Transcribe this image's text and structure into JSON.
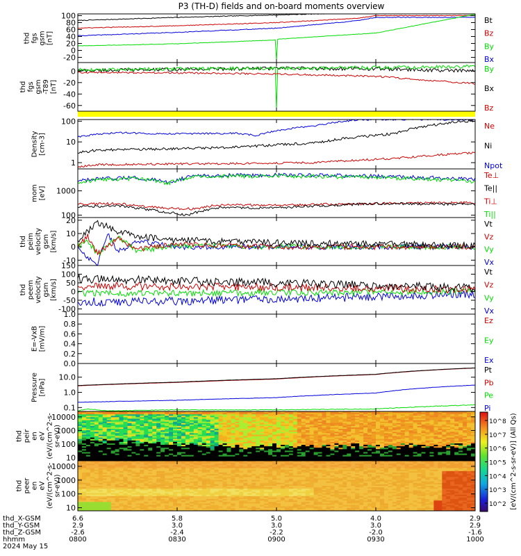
{
  "title": "P3 (TH-D) fields and on-board moments overview",
  "colors": {
    "black": "#000000",
    "red": "#cc0000",
    "green": "#00dd00",
    "blue": "#0000dd",
    "yellow": "#ffff00",
    "frame": "#000000"
  },
  "time_axis": {
    "ticks": [
      "0800",
      "0830",
      "0900",
      "0930",
      "1000"
    ],
    "date_label": "2024 May 15",
    "rows": [
      {
        "label": "thd_X-GSM",
        "values": [
          "6.6",
          "5.8",
          "5.0",
          "4.0",
          "2.9"
        ]
      },
      {
        "label": "thd_Y-GSM",
        "values": [
          "2.9",
          "3.0",
          "3.0",
          "3.0",
          "2.9"
        ]
      },
      {
        "label": "thd_Z-GSM",
        "values": [
          "-2.6",
          "-2.4",
          "-2.2",
          "-2.0",
          "-1.6"
        ]
      },
      {
        "label": "hhmm",
        "values": [
          "0800",
          "0830",
          "0900",
          "0930",
          "1000"
        ]
      }
    ]
  },
  "chart_data": [
    {
      "type": "line",
      "ylabel_lines": [
        "thd",
        "fgs",
        "gsm",
        "[nT]"
      ],
      "yscale": "linear",
      "ylim": [
        -35,
        105
      ],
      "yticks": [
        {
          "v": 100,
          "t": "100"
        },
        {
          "v": 80,
          "t": "80"
        },
        {
          "v": 60,
          "t": "60"
        },
        {
          "v": 40,
          "t": "40"
        },
        {
          "v": 20,
          "t": "20"
        },
        {
          "v": 0,
          "t": "0"
        },
        {
          "v": -20,
          "t": "-20"
        }
      ],
      "legend": [
        {
          "t": "Bt",
          "c": "black"
        },
        {
          "t": "Bz",
          "c": "red"
        },
        {
          "t": "By",
          "c": "green"
        },
        {
          "t": "Bx",
          "c": "blue"
        }
      ],
      "series": [
        {
          "color": "black",
          "x": [
            0,
            0.5,
            1.0,
            1.4,
            1.5
          ],
          "y": [
            86,
            95,
            102,
            108,
            110
          ],
          "noise": 1
        },
        {
          "color": "red",
          "x": [
            0,
            0.5,
            1.0,
            1.4,
            1.5
          ],
          "y": [
            64,
            71,
            80,
            92,
            100
          ],
          "noise": 1
        },
        {
          "color": "blue",
          "x": [
            0,
            0.5,
            1.0,
            1.4,
            1.5
          ],
          "y": [
            42,
            52,
            64,
            85,
            95
          ],
          "noise": 1
        },
        {
          "color": "green",
          "x": [
            0,
            0.5,
            0.999,
            1.0,
            1.001,
            1.5,
            2.0
          ],
          "y": [
            13,
            19,
            30,
            -28,
            32,
            50,
            104
          ],
          "noise": 0.6
        }
      ]
    },
    {
      "type": "line",
      "ylabel_lines": [
        "thd",
        "fgs",
        "gsm",
        "-T89",
        "[nT]"
      ],
      "yscale": "linear",
      "ylim": [
        -70,
        15
      ],
      "yticks": [
        {
          "v": 0,
          "t": "0"
        },
        {
          "v": -20,
          "t": "-20"
        },
        {
          "v": -40,
          "t": "-40"
        },
        {
          "v": -60,
          "t": "-60"
        }
      ],
      "legend": [
        {
          "t": "By",
          "c": "green"
        },
        {
          "t": "Bx",
          "c": "black"
        },
        {
          "t": "Bz",
          "c": "red"
        }
      ],
      "series": [
        {
          "color": "black",
          "x": [
            0,
            0.5,
            1.0,
            1.5,
            2.0
          ],
          "y": [
            1,
            3,
            5,
            4,
            0
          ],
          "noise": 3
        },
        {
          "color": "green",
          "x": [
            0,
            0.5,
            0.999,
            1.0,
            1.001,
            1.5,
            2.0
          ],
          "y": [
            2,
            4,
            5,
            -65,
            5,
            6,
            8
          ],
          "noise": 3
        },
        {
          "color": "red",
          "x": [
            0,
            0.5,
            1.0,
            1.5,
            2.0
          ],
          "y": [
            -2,
            -3,
            -5,
            -9,
            -22
          ],
          "noise": 1.5
        }
      ]
    },
    {
      "type": "line",
      "ylabel_lines": [
        "Density",
        "[cm-3]"
      ],
      "yscale": "log",
      "ylim": [
        0.5,
        120
      ],
      "yticks": [
        {
          "v": 100,
          "t": "100"
        },
        {
          "v": 10,
          "t": "10"
        },
        {
          "v": 1,
          "t": "1"
        }
      ],
      "legend": [
        {
          "t": "Ne",
          "c": "red"
        },
        {
          "t": "Ni",
          "c": "black"
        },
        {
          "t": "Npot",
          "c": "blue"
        }
      ],
      "series": [
        {
          "color": "blue",
          "x": [
            0,
            0.2,
            0.4,
            0.6,
            0.8,
            0.9,
            1.0,
            1.2,
            1.42
          ],
          "y": [
            18,
            28,
            25,
            25,
            26,
            20,
            35,
            60,
            120
          ],
          "noise": 0.04
        },
        {
          "color": "black",
          "x": [
            0,
            0.1,
            0.4,
            0.8,
            1.2,
            1.6,
            2.0
          ],
          "y": [
            3,
            4,
            4.5,
            5.5,
            9,
            25,
            110
          ],
          "noise": 0.06
        },
        {
          "color": "red",
          "x": [
            0,
            0.1,
            0.4,
            0.8,
            1.2,
            1.6,
            2.0
          ],
          "y": [
            0.6,
            0.8,
            0.85,
            0.9,
            1.0,
            1.6,
            3
          ],
          "noise": 0.05
        }
      ]
    },
    {
      "type": "line",
      "ylabel_lines": [
        "mom",
        "[eV]"
      ],
      "yscale": "log",
      "ylim": [
        80,
        8000
      ],
      "yticks": [
        {
          "v": 1000,
          "t": "1000"
        },
        {
          "v": 100,
          "t": "100"
        }
      ],
      "legend": [
        {
          "t": "Te⊥",
          "c": "red"
        },
        {
          "t": "Te||",
          "c": "black"
        },
        {
          "t": "Ti⊥",
          "c": "red"
        },
        {
          "t": "Ti||",
          "c": "green"
        }
      ],
      "series": [
        {
          "color": "blue",
          "x": [
            0,
            0.1,
            0.3,
            0.45,
            0.6,
            1.0,
            1.5,
            2.0
          ],
          "y": [
            2500,
            3000,
            3500,
            2200,
            4200,
            4500,
            4000,
            3000
          ],
          "noise": 0.08
        },
        {
          "color": "green",
          "x": [
            0,
            0.1,
            0.3,
            0.45,
            0.6,
            1.0,
            1.5,
            2.0
          ],
          "y": [
            2300,
            2800,
            3200,
            2000,
            3900,
            4100,
            3600,
            2400
          ],
          "noise": 0.08
        },
        {
          "color": "red",
          "x": [
            0,
            0.2,
            0.4,
            0.6,
            0.7,
            1.0,
            1.5,
            2.0
          ],
          "y": [
            280,
            300,
            200,
            180,
            260,
            260,
            300,
            330
          ],
          "noise": 0.05
        },
        {
          "color": "black",
          "x": [
            0,
            0.2,
            0.4,
            0.55,
            0.7,
            1.0,
            1.5,
            2.0
          ],
          "y": [
            220,
            240,
            150,
            100,
            200,
            200,
            300,
            280
          ],
          "noise": 0.05
        }
      ]
    },
    {
      "type": "line",
      "ylabel_lines": [
        "thd",
        "peim",
        "velocity",
        "gsm",
        "[km/s]"
      ],
      "yscale": "linear",
      "ylim": [
        -14,
        22
      ],
      "yticks": [
        {
          "v": 20,
          "t": "20"
        },
        {
          "v": 10,
          "t": "10"
        },
        {
          "v": 0,
          "t": "0"
        },
        {
          "v": -10,
          "t": "-10"
        }
      ],
      "legend": [
        {
          "t": "Vt",
          "c": "black"
        },
        {
          "t": "Vz",
          "c": "red"
        },
        {
          "t": "Vy",
          "c": "green"
        },
        {
          "t": "Vx",
          "c": "blue"
        }
      ],
      "series": [
        {
          "color": "blue",
          "x": [
            0,
            0.05,
            0.1,
            0.15,
            0.2,
            0.3,
            0.5,
            1.0,
            2.0
          ],
          "y": [
            0,
            -8,
            -12,
            10,
            -4,
            4,
            0,
            0,
            0
          ],
          "noise": 2
        },
        {
          "color": "green",
          "x": [
            0,
            0.05,
            0.1,
            0.2,
            0.3,
            0.5,
            1.0,
            2.0
          ],
          "y": [
            0,
            5,
            -6,
            8,
            -3,
            1,
            0,
            0
          ],
          "noise": 2
        },
        {
          "color": "red",
          "x": [
            0,
            0.05,
            0.1,
            0.2,
            0.3,
            0.5,
            1.0,
            2.0
          ],
          "y": [
            0,
            8,
            -5,
            6,
            -2,
            2,
            0,
            0
          ],
          "noise": 2
        },
        {
          "color": "black",
          "x": [
            0,
            0.05,
            0.1,
            0.2,
            0.3,
            0.5,
            1.0,
            2.0
          ],
          "y": [
            5,
            12,
            18,
            12,
            8,
            5,
            3,
            1
          ],
          "noise": 2.5
        }
      ]
    },
    {
      "type": "line",
      "ylabel_lines": [
        "thd",
        "peem",
        "velocity",
        "gsm",
        "[km/s]"
      ],
      "yscale": "linear",
      "ylim": [
        -130,
        150
      ],
      "yticks": [
        {
          "v": 150,
          "t": "150"
        },
        {
          "v": 100,
          "t": "100"
        },
        {
          "v": 50,
          "t": "50"
        },
        {
          "v": 0,
          "t": "0"
        },
        {
          "v": -50,
          "t": "-50"
        },
        {
          "v": -100,
          "t": "-100"
        }
      ],
      "legend": [
        {
          "t": "Vt",
          "c": "black"
        },
        {
          "t": "Vz",
          "c": "red"
        },
        {
          "t": "Vy",
          "c": "green"
        },
        {
          "t": "Vx",
          "c": "blue"
        }
      ],
      "series": [
        {
          "color": "blue",
          "x": [
            0,
            0.5,
            1.0,
            1.5,
            2.0
          ],
          "y": [
            -60,
            -55,
            -40,
            -30,
            -10
          ],
          "noise": 25
        },
        {
          "color": "green",
          "x": [
            0,
            0.5,
            1.0,
            1.5,
            2.0
          ],
          "y": [
            -10,
            -10,
            -5,
            -5,
            0
          ],
          "noise": 18
        },
        {
          "color": "red",
          "x": [
            0,
            0.5,
            1.0,
            1.5,
            2.0
          ],
          "y": [
            30,
            30,
            25,
            20,
            10
          ],
          "noise": 22
        },
        {
          "color": "black",
          "x": [
            0,
            0.5,
            1.0,
            1.5,
            2.0
          ],
          "y": [
            75,
            60,
            50,
            35,
            20
          ],
          "noise": 25
        }
      ]
    },
    {
      "type": "line",
      "ylabel_lines": [
        "E=-VxB",
        "[mV/m]"
      ],
      "yscale": "linear",
      "ylim": [
        0,
        1
      ],
      "yticks": [
        {
          "v": 1.0,
          "t": "1.0"
        },
        {
          "v": 0.8,
          "t": "0.8"
        },
        {
          "v": 0.6,
          "t": "0.6"
        },
        {
          "v": 0.4,
          "t": "0.4"
        },
        {
          "v": 0.2,
          "t": "0.2"
        },
        {
          "v": 0.0,
          "t": "0.0"
        }
      ],
      "legend": [
        {
          "t": "Ez",
          "c": "red"
        },
        {
          "t": "Ey",
          "c": "green"
        },
        {
          "t": "Ex",
          "c": "blue"
        }
      ],
      "series": []
    },
    {
      "type": "line",
      "ylabel_lines": [
        "Pressure",
        "[nPa]"
      ],
      "yscale": "log",
      "ylim": [
        0.055,
        80
      ],
      "yticks": [
        {
          "v": 10,
          "t": "10.0"
        },
        {
          "v": 1,
          "t": "1.0"
        },
        {
          "v": 0.1,
          "t": "0.1"
        }
      ],
      "legend": [
        {
          "t": "Pt",
          "c": "black"
        },
        {
          "t": "Pb",
          "c": "red"
        },
        {
          "t": "Pe",
          "c": "green"
        },
        {
          "t": "Pi",
          "c": "blue"
        }
      ],
      "series": [
        {
          "color": "green",
          "x": [
            0,
            0.05,
            0.15,
            0.5,
            1.0,
            1.5,
            2.0
          ],
          "y": [
            0.06,
            0.08,
            0.06,
            0.07,
            0.07,
            0.08,
            0.15
          ],
          "noise": 0.02
        },
        {
          "color": "blue",
          "x": [
            0,
            0.5,
            1.0,
            1.5,
            2.0
          ],
          "y": [
            0.22,
            0.3,
            0.45,
            0.9,
            3
          ],
          "noise": 0.01
        },
        {
          "color": "red",
          "x": [
            0,
            0.5,
            1.0,
            1.5,
            2.0
          ],
          "y": [
            2.7,
            4.5,
            7.5,
            15,
            40
          ],
          "noise": 0.005
        },
        {
          "color": "black",
          "x": [
            0,
            0.5,
            1.0,
            1.5,
            2.0
          ],
          "y": [
            2.8,
            4.7,
            7.9,
            15.5,
            41
          ],
          "noise": 0.005
        }
      ]
    },
    {
      "type": "heatmap",
      "ylabel_lines": [
        "thd",
        "peir",
        "en",
        "eV",
        "(eV/(cm^2-s-",
        "sr-eV))"
      ],
      "yscale": "log",
      "ylim": [
        6,
        25000
      ],
      "yticks": [
        {
          "v": 10000,
          "t": "10000"
        },
        {
          "v": 1000,
          "t": "1000"
        },
        {
          "v": 100,
          "t": "100"
        },
        {
          "v": 10,
          "t": "10"
        }
      ],
      "legend": [],
      "species": "ion"
    },
    {
      "type": "heatmap",
      "ylabel_lines": [
        "thd",
        "peer",
        "en",
        "eV",
        "(eV/(cm^2-s-",
        "sr-eV))"
      ],
      "yscale": "log",
      "ylim": [
        6,
        25000
      ],
      "yticks": [
        {
          "v": 10000,
          "t": "10000"
        },
        {
          "v": 1000,
          "t": "1000"
        },
        {
          "v": 100,
          "t": "100"
        },
        {
          "v": 10,
          "t": "10"
        }
      ],
      "legend": [],
      "species": "electron"
    }
  ],
  "colorbar": {
    "label": "[eV/(cm^2-s-sr-eV)] (All Qs)",
    "ticks": [
      "10^8",
      "10^7",
      "10^6",
      "10^5",
      "10^4",
      "10^3",
      "10^2"
    ]
  }
}
